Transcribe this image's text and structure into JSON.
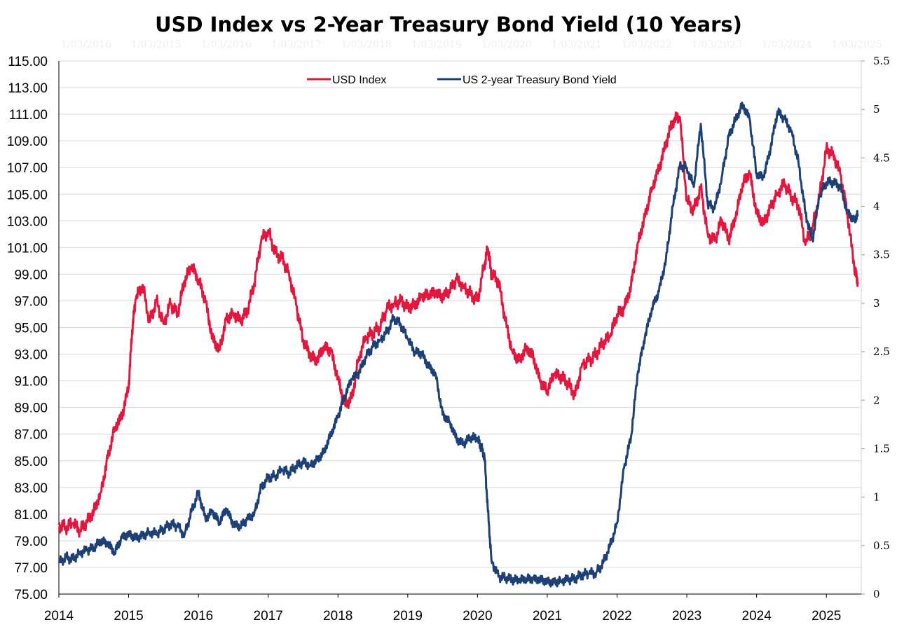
{
  "chart_data": {
    "type": "line",
    "title": "USD Index vs 2-Year Treasury Bond Yield (10 Years)",
    "xlabel": "",
    "ylabel": "",
    "y2label": "",
    "x_ticks": [
      "2014",
      "2015",
      "2016",
      "2017",
      "2018",
      "2019",
      "2020",
      "2021",
      "2022",
      "2023",
      "2024",
      "2025"
    ],
    "xlim": [
      2014.0,
      2025.5
    ],
    "ylim": [
      75,
      115
    ],
    "y_ticks": [
      "75.00",
      "77.00",
      "79.00",
      "81.00",
      "83.00",
      "85.00",
      "87.00",
      "89.00",
      "91.00",
      "93.00",
      "95.00",
      "97.00",
      "99.00",
      "101.00",
      "103.00",
      "105.00",
      "107.00",
      "109.00",
      "111.00",
      "113.00",
      "115.00"
    ],
    "y2lim": [
      0,
      5.5
    ],
    "y2_ticks": [
      "0",
      "0.5",
      "1",
      "1.5",
      "2",
      "2.5",
      "3",
      "3.5",
      "4",
      "4.5",
      "5",
      "5.5"
    ],
    "grid": true,
    "legend_position": "top-center",
    "watermark_labels": [
      "1/03/2016",
      "1/03/2015",
      "1/03/2016",
      "1/03/2017",
      "1/03/2018",
      "1/03/2019",
      "1/03/2020",
      "1/03/2021",
      "1/03/2022",
      "1/03/2023",
      "1/03/2024",
      "1/03/2025"
    ],
    "series": [
      {
        "name": "USD Index",
        "axis": "left",
        "color": "#e3173e",
        "x": [
          2014.0,
          2014.1,
          2014.2,
          2014.3,
          2014.4,
          2014.5,
          2014.6,
          2014.7,
          2014.8,
          2014.9,
          2015.0,
          2015.05,
          2015.1,
          2015.2,
          2015.3,
          2015.4,
          2015.5,
          2015.6,
          2015.7,
          2015.8,
          2015.9,
          2016.0,
          2016.1,
          2016.2,
          2016.3,
          2016.4,
          2016.5,
          2016.6,
          2016.7,
          2016.8,
          2016.9,
          2017.0,
          2017.1,
          2017.2,
          2017.3,
          2017.4,
          2017.5,
          2017.6,
          2017.7,
          2017.8,
          2017.9,
          2018.0,
          2018.1,
          2018.2,
          2018.3,
          2018.4,
          2018.5,
          2018.6,
          2018.7,
          2018.8,
          2018.9,
          2019.0,
          2019.1,
          2019.2,
          2019.3,
          2019.4,
          2019.5,
          2019.6,
          2019.7,
          2019.8,
          2019.9,
          2020.0,
          2020.1,
          2020.15,
          2020.2,
          2020.3,
          2020.4,
          2020.5,
          2020.6,
          2020.7,
          2020.8,
          2020.9,
          2021.0,
          2021.1,
          2021.2,
          2021.3,
          2021.4,
          2021.5,
          2021.6,
          2021.7,
          2021.8,
          2021.9,
          2022.0,
          2022.1,
          2022.2,
          2022.3,
          2022.4,
          2022.5,
          2022.6,
          2022.7,
          2022.8,
          2022.9,
          2023.0,
          2023.1,
          2023.2,
          2023.3,
          2023.4,
          2023.5,
          2023.6,
          2023.7,
          2023.8,
          2023.9,
          2024.0,
          2024.1,
          2024.2,
          2024.3,
          2024.4,
          2024.5,
          2024.6,
          2024.7,
          2024.8,
          2024.9,
          2025.0,
          2025.1,
          2025.2,
          2025.3,
          2025.4,
          2025.45
        ],
        "values": [
          80.2,
          80.0,
          80.3,
          79.8,
          80.4,
          81.2,
          82.6,
          85.2,
          87.5,
          88.3,
          90.5,
          94.8,
          97.1,
          98.2,
          95.4,
          97.0,
          95.3,
          96.8,
          96.0,
          98.5,
          99.6,
          98.6,
          97.0,
          94.2,
          93.3,
          95.6,
          96.1,
          95.5,
          96.2,
          98.3,
          101.5,
          102.3,
          100.6,
          100.2,
          99.0,
          96.7,
          94.1,
          92.9,
          92.5,
          93.6,
          93.2,
          91.2,
          89.2,
          89.7,
          92.8,
          94.2,
          94.6,
          95.0,
          96.4,
          96.8,
          97.0,
          96.5,
          96.7,
          97.3,
          97.5,
          97.6,
          97.3,
          97.8,
          98.6,
          98.1,
          97.5,
          97.0,
          99.8,
          100.9,
          99.0,
          98.5,
          95.5,
          93.2,
          92.5,
          93.5,
          92.8,
          90.9,
          90.3,
          91.5,
          91.3,
          90.8,
          89.9,
          92.3,
          92.5,
          93.0,
          93.9,
          94.3,
          96.0,
          96.4,
          98.1,
          101.4,
          103.3,
          105.5,
          106.9,
          108.8,
          110.5,
          110.8,
          104.5,
          103.8,
          105.5,
          102.0,
          101.5,
          103.1,
          101.6,
          103.3,
          105.8,
          106.6,
          103.6,
          102.8,
          104.0,
          105.1,
          105.8,
          104.8,
          104.2,
          101.2,
          102.5,
          104.8,
          108.4,
          108.0,
          106.5,
          103.6,
          99.5,
          98.4
        ]
      },
      {
        "name": "US 2-year Treasury Bond Yield",
        "axis": "right",
        "color": "#1d4077",
        "x": [
          2014.0,
          2014.1,
          2014.2,
          2014.3,
          2014.4,
          2014.5,
          2014.6,
          2014.7,
          2014.8,
          2014.9,
          2015.0,
          2015.1,
          2015.2,
          2015.3,
          2015.4,
          2015.5,
          2015.6,
          2015.7,
          2015.8,
          2015.9,
          2016.0,
          2016.1,
          2016.2,
          2016.3,
          2016.4,
          2016.5,
          2016.6,
          2016.7,
          2016.8,
          2016.9,
          2017.0,
          2017.1,
          2017.2,
          2017.3,
          2017.4,
          2017.5,
          2017.6,
          2017.7,
          2017.8,
          2017.9,
          2018.0,
          2018.1,
          2018.2,
          2018.3,
          2018.4,
          2018.5,
          2018.6,
          2018.7,
          2018.8,
          2018.9,
          2019.0,
          2019.1,
          2019.2,
          2019.3,
          2019.4,
          2019.5,
          2019.6,
          2019.7,
          2019.8,
          2019.9,
          2020.0,
          2020.05,
          2020.1,
          2020.15,
          2020.2,
          2020.3,
          2020.4,
          2020.5,
          2020.6,
          2020.7,
          2020.8,
          2020.9,
          2021.0,
          2021.1,
          2021.2,
          2021.3,
          2021.4,
          2021.5,
          2021.6,
          2021.7,
          2021.8,
          2021.9,
          2022.0,
          2022.1,
          2022.2,
          2022.3,
          2022.4,
          2022.5,
          2022.6,
          2022.7,
          2022.8,
          2022.9,
          2023.0,
          2023.1,
          2023.2,
          2023.3,
          2023.4,
          2023.5,
          2023.6,
          2023.7,
          2023.8,
          2023.9,
          2024.0,
          2024.1,
          2024.2,
          2024.3,
          2024.4,
          2024.5,
          2024.6,
          2024.7,
          2024.8,
          2024.9,
          2025.0,
          2025.1,
          2025.2,
          2025.3,
          2025.4,
          2025.45
        ],
        "values": [
          0.32,
          0.38,
          0.36,
          0.43,
          0.45,
          0.48,
          0.55,
          0.52,
          0.43,
          0.58,
          0.62,
          0.58,
          0.6,
          0.64,
          0.62,
          0.67,
          0.72,
          0.7,
          0.61,
          0.85,
          1.05,
          0.78,
          0.85,
          0.74,
          0.88,
          0.72,
          0.7,
          0.77,
          0.83,
          1.1,
          1.2,
          1.22,
          1.28,
          1.25,
          1.32,
          1.36,
          1.33,
          1.38,
          1.47,
          1.65,
          1.83,
          2.05,
          2.22,
          2.28,
          2.45,
          2.55,
          2.62,
          2.7,
          2.85,
          2.78,
          2.63,
          2.5,
          2.48,
          2.35,
          2.27,
          1.85,
          1.78,
          1.6,
          1.55,
          1.62,
          1.6,
          1.52,
          1.42,
          0.85,
          0.35,
          0.18,
          0.17,
          0.15,
          0.14,
          0.16,
          0.15,
          0.15,
          0.13,
          0.12,
          0.14,
          0.15,
          0.16,
          0.2,
          0.21,
          0.22,
          0.32,
          0.5,
          0.73,
          1.3,
          1.62,
          2.3,
          2.65,
          2.95,
          3.12,
          3.45,
          4.0,
          4.42,
          4.4,
          4.2,
          4.85,
          4.02,
          3.98,
          4.3,
          4.72,
          4.9,
          5.05,
          4.9,
          4.33,
          4.3,
          4.6,
          4.98,
          4.9,
          4.78,
          4.45,
          3.93,
          3.65,
          4.1,
          4.25,
          4.25,
          4.2,
          3.95,
          3.85,
          3.92
        ]
      }
    ]
  }
}
